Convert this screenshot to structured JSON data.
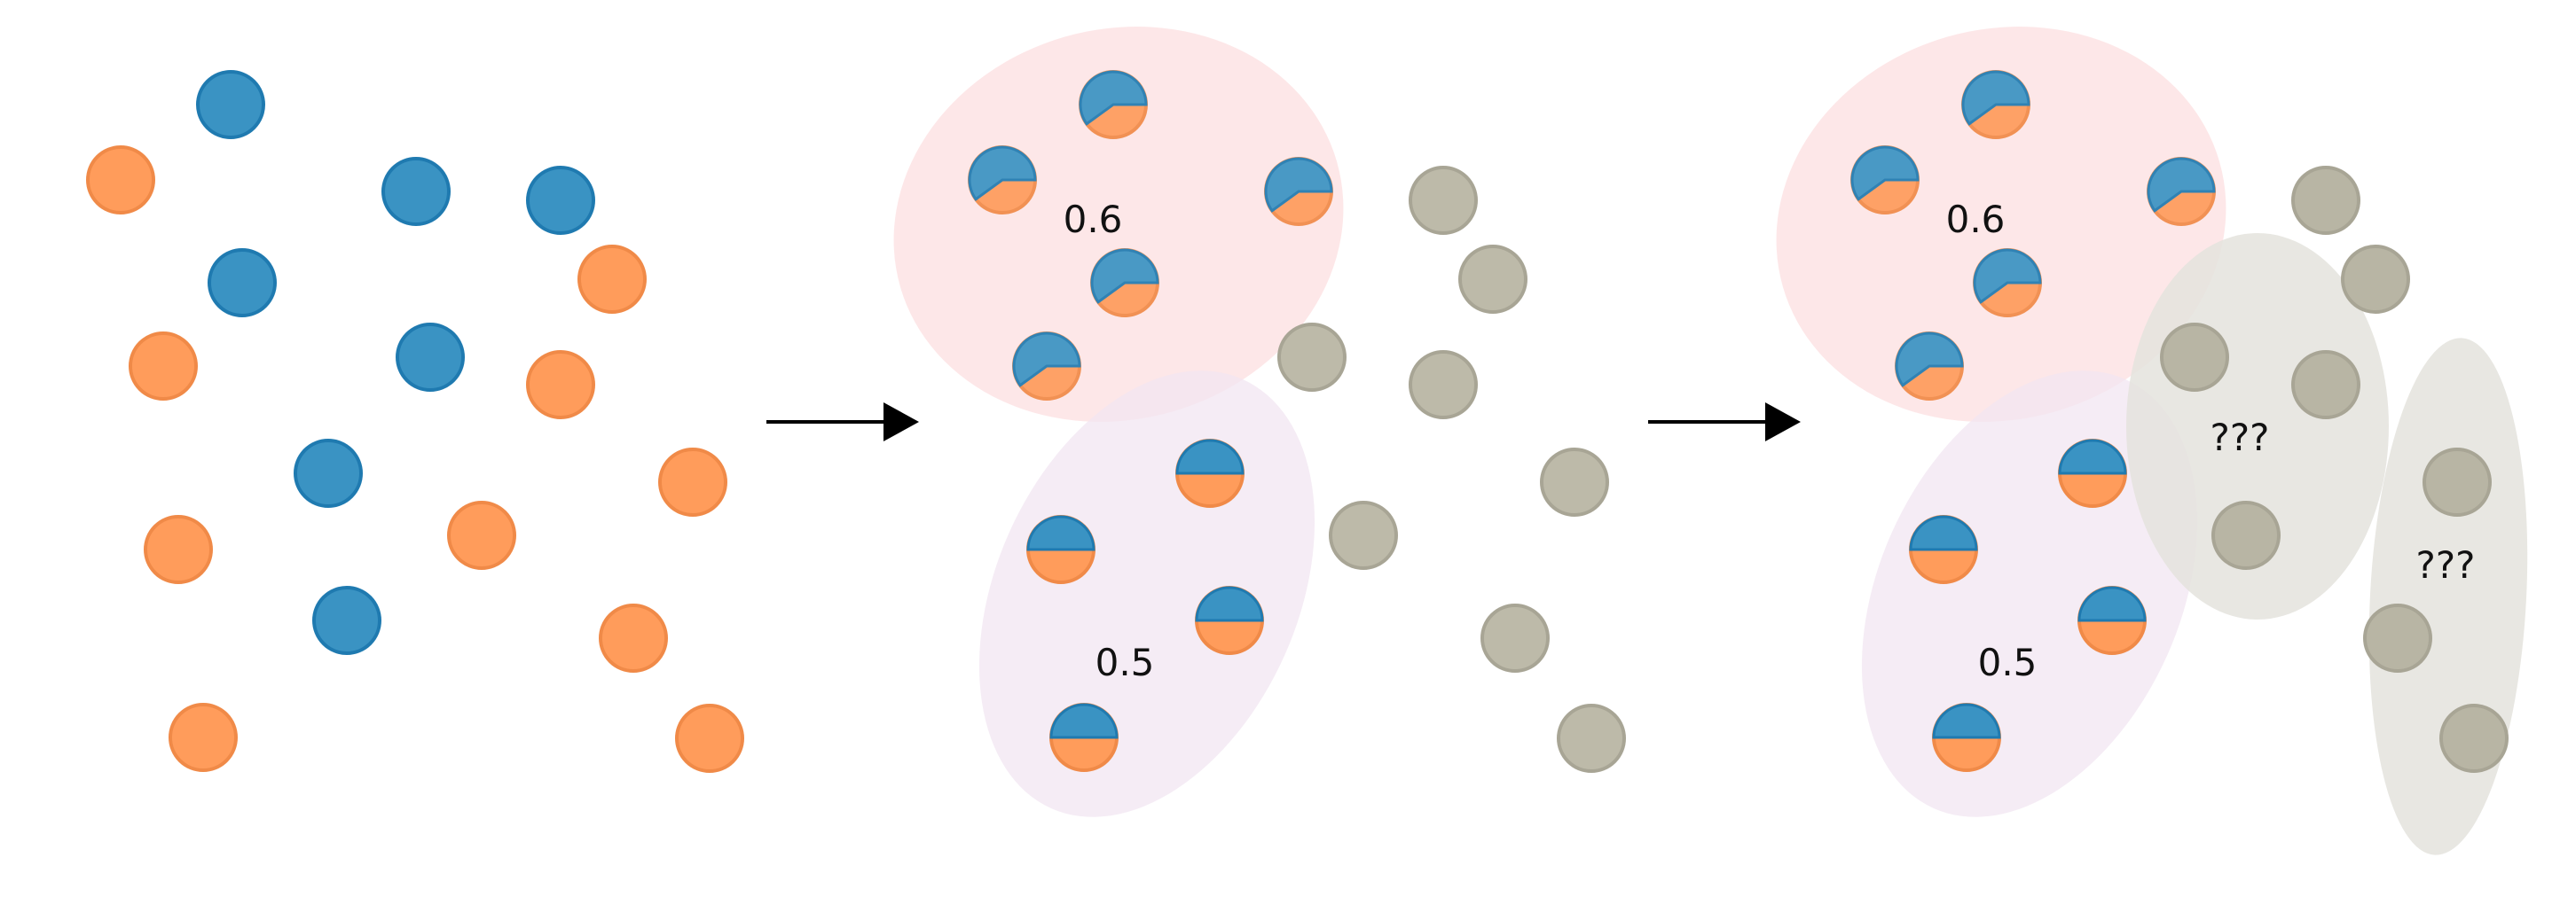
{
  "colors": {
    "blue": "#3a93c3",
    "blue_edge": "#1f7ab0",
    "orange": "#ff9c5b",
    "orange_edge": "#f08a48",
    "gray": "#bdbaa9",
    "gray_edge": "#a8a595",
    "cluster_red": "#fde6e7",
    "cluster_purple": "#f3ebf5",
    "cluster_gray": "#e4e3dd",
    "arrow": "#000000"
  },
  "panels": [
    {
      "name": "unlabeled-points",
      "labels": []
    },
    {
      "name": "clustered-with-proportions",
      "labels": [
        "0.6",
        "0.5"
      ]
    },
    {
      "name": "new-clusters-unknown",
      "labels": [
        "0.6",
        "0.5",
        "???",
        "???"
      ]
    }
  ],
  "cluster_proportions": {
    "cluster_a_blue_fraction": 0.6,
    "cluster_b_blue_fraction": 0.5
  }
}
